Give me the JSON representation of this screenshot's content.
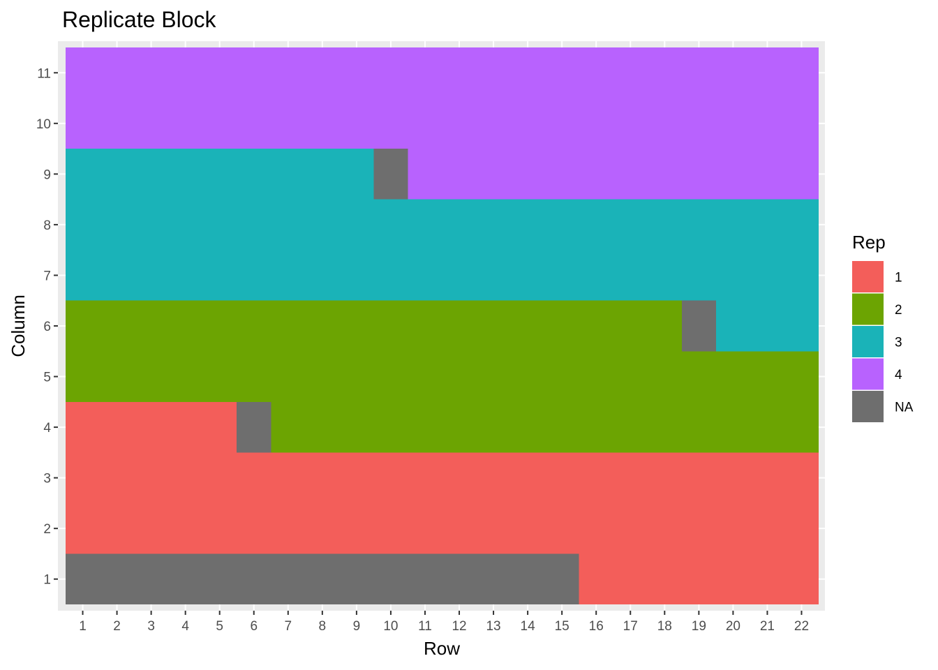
{
  "chart_data": {
    "type": "heatmap",
    "title": "Replicate Block",
    "xlabel": "Row",
    "ylabel": "Column",
    "x_ticks": [
      "1",
      "2",
      "3",
      "4",
      "5",
      "6",
      "7",
      "8",
      "9",
      "10",
      "11",
      "12",
      "13",
      "14",
      "15",
      "16",
      "17",
      "18",
      "19",
      "20",
      "21",
      "22"
    ],
    "y_ticks": [
      "1",
      "2",
      "3",
      "4",
      "5",
      "6",
      "7",
      "8",
      "9",
      "10",
      "11"
    ],
    "xlim": [
      0.5,
      22.5
    ],
    "ylim": [
      0.5,
      11.5
    ],
    "grid": true,
    "fill_variable": "Rep",
    "legend": {
      "title": "Rep",
      "placement": "right",
      "entries": [
        {
          "label": "1",
          "color": "#F8766D"
        },
        {
          "label": "2",
          "color": "#7CAE00"
        },
        {
          "label": "3",
          "color": "#00BFC4"
        },
        {
          "label": "4",
          "color": "#C77CFF"
        },
        {
          "label": "NA",
          "color": "#7F7F7F"
        }
      ]
    },
    "colors": {
      "1": "#F35E5A",
      "2": "#6CA402",
      "3": "#1AB3B8",
      "4": "#B862FE",
      "NA": "#6E6E6E"
    },
    "cells": [
      {
        "column": 1,
        "rows": [
          1,
          15
        ],
        "rep": "NA"
      },
      {
        "column": 1,
        "rows": [
          16,
          22
        ],
        "rep": "1"
      },
      {
        "column": 2,
        "rows": [
          1,
          22
        ],
        "rep": "1"
      },
      {
        "column": 3,
        "rows": [
          1,
          22
        ],
        "rep": "1"
      },
      {
        "column": 4,
        "rows": [
          1,
          5
        ],
        "rep": "1"
      },
      {
        "column": 4,
        "rows": [
          6,
          6
        ],
        "rep": "NA"
      },
      {
        "column": 4,
        "rows": [
          7,
          22
        ],
        "rep": "2"
      },
      {
        "column": 5,
        "rows": [
          1,
          22
        ],
        "rep": "2"
      },
      {
        "column": 6,
        "rows": [
          1,
          18
        ],
        "rep": "2"
      },
      {
        "column": 6,
        "rows": [
          19,
          19
        ],
        "rep": "NA"
      },
      {
        "column": 6,
        "rows": [
          20,
          22
        ],
        "rep": "3"
      },
      {
        "column": 7,
        "rows": [
          1,
          22
        ],
        "rep": "3"
      },
      {
        "column": 8,
        "rows": [
          1,
          22
        ],
        "rep": "3"
      },
      {
        "column": 9,
        "rows": [
          1,
          9
        ],
        "rep": "3"
      },
      {
        "column": 9,
        "rows": [
          10,
          10
        ],
        "rep": "NA"
      },
      {
        "column": 9,
        "rows": [
          11,
          22
        ],
        "rep": "4"
      },
      {
        "column": 10,
        "rows": [
          1,
          22
        ],
        "rep": "4"
      },
      {
        "column": 11,
        "rows": [
          1,
          22
        ],
        "rep": "4"
      }
    ]
  }
}
